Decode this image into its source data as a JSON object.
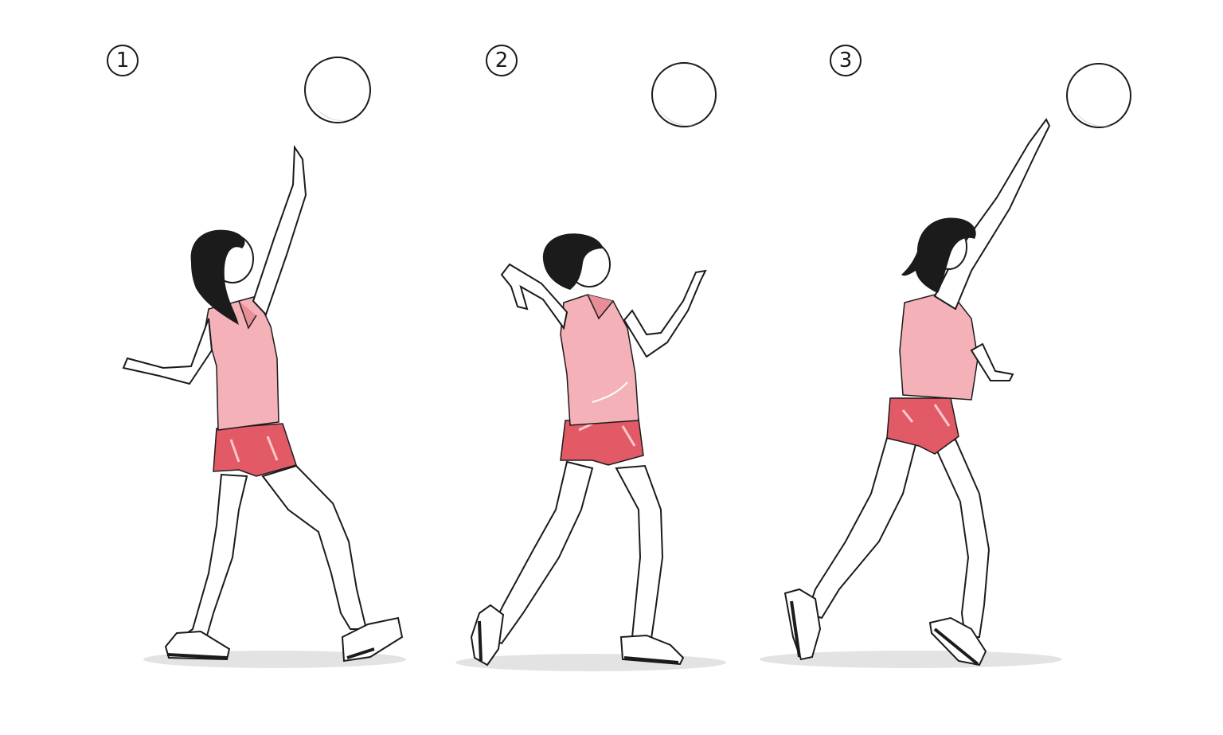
{
  "steps": [
    {
      "label": "1"
    },
    {
      "label": "2"
    },
    {
      "label": "3"
    }
  ],
  "colors": {
    "jersey": "#f4b2b8",
    "jersey_shade": "#e98e98",
    "shorts": "#e35a67",
    "shorts_highlight": "#f8c9ce",
    "skin": "#ffffff",
    "hair": "#1b1b1b",
    "outline": "#1b1b1b",
    "ball_shade": "#d8d8d8",
    "ground_shadow": "#e3e3e3",
    "shoe": "#ffffff"
  },
  "icons": {
    "ball": "volleyball-icon",
    "player": "player-figure"
  }
}
